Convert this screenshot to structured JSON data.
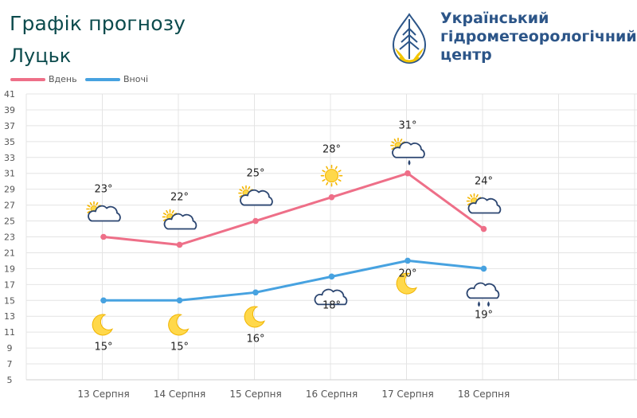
{
  "header": {
    "title": "Графік прогнозу",
    "city": "Луцьк"
  },
  "organization": {
    "line1": "Український",
    "line2": "гідрометеорологічний",
    "line3": "центр"
  },
  "legend": {
    "day": "Вдень",
    "night": "Вночі"
  },
  "colors": {
    "day": "#ee6f88",
    "night": "#47a2e0",
    "brand": "#2c5588",
    "title": "#0c4b4d"
  },
  "chart_data": {
    "type": "line",
    "categories": [
      "13 Серпня",
      "14 Серпня",
      "15 Серпня",
      "16 Серпня",
      "17 Серпня",
      "18 Серпня"
    ],
    "series": [
      {
        "name": "Вдень",
        "values": [
          23,
          22,
          25,
          28,
          31,
          24
        ],
        "labels": [
          "23°",
          "22°",
          "25°",
          "28°",
          "31°",
          "24°"
        ],
        "icons": [
          "sun-cloud",
          "sun-cloud",
          "sun-cloud",
          "sun",
          "sun-cloud-rain",
          "sun-cloud"
        ]
      },
      {
        "name": "Вночі",
        "values": [
          15,
          15,
          16,
          18,
          20,
          19
        ],
        "labels": [
          "15°",
          "15°",
          "16°",
          "18°",
          "20°",
          "19°"
        ],
        "icons": [
          "moon",
          "moon",
          "moon",
          "cloud",
          "moon",
          "cloud-rain"
        ]
      }
    ],
    "yticks": [
      5,
      7,
      9,
      11,
      13,
      15,
      17,
      19,
      21,
      23,
      25,
      27,
      29,
      31,
      33,
      35,
      37,
      39,
      41
    ],
    "ylim": [
      5,
      41
    ],
    "grid": true,
    "legend_position": "top-left"
  }
}
